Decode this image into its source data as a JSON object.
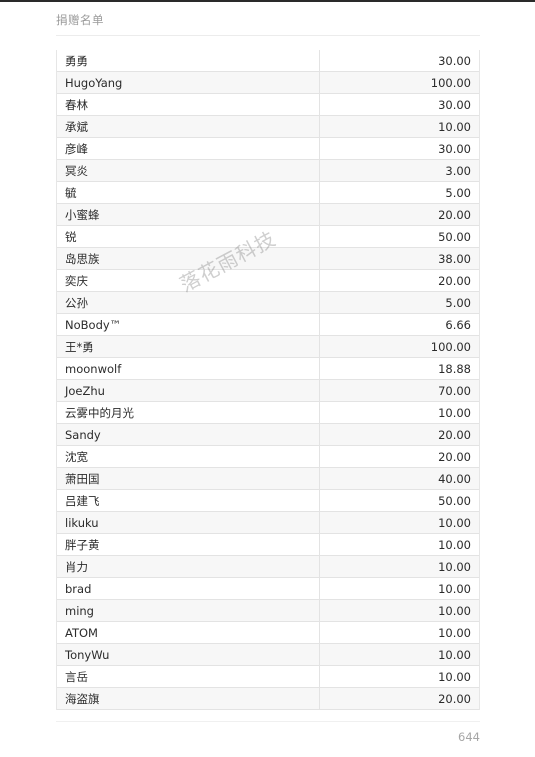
{
  "header": {
    "title": "捐赠名单"
  },
  "donations": [
    {
      "name": "勇勇",
      "amount": "30.00"
    },
    {
      "name": "HugoYang",
      "amount": "100.00"
    },
    {
      "name": "春林",
      "amount": "30.00"
    },
    {
      "name": "承斌",
      "amount": "10.00"
    },
    {
      "name": "彦峰",
      "amount": "30.00"
    },
    {
      "name": "冥炎",
      "amount": "3.00"
    },
    {
      "name": "毓",
      "amount": "5.00"
    },
    {
      "name": "小蜜蜂",
      "amount": "20.00"
    },
    {
      "name": "锐",
      "amount": "50.00"
    },
    {
      "name": "岛思族",
      "amount": "38.00"
    },
    {
      "name": "奕庆",
      "amount": "20.00"
    },
    {
      "name": "公孙",
      "amount": "5.00"
    },
    {
      "name": "NoBody™",
      "amount": "6.66"
    },
    {
      "name": "王*勇",
      "amount": "100.00"
    },
    {
      "name": "moonwolf",
      "amount": "18.88"
    },
    {
      "name": "JoeZhu",
      "amount": "70.00"
    },
    {
      "name": "云雾中的月光",
      "amount": "10.00"
    },
    {
      "name": "Sandy",
      "amount": "20.00"
    },
    {
      "name": "沈宽",
      "amount": "20.00"
    },
    {
      "name": "萧田国",
      "amount": "40.00"
    },
    {
      "name": "吕建飞",
      "amount": "50.00"
    },
    {
      "name": "likuku",
      "amount": "10.00"
    },
    {
      "name": "胖子黄",
      "amount": "10.00"
    },
    {
      "name": "肖力",
      "amount": "10.00"
    },
    {
      "name": "brad",
      "amount": "10.00"
    },
    {
      "name": "ming",
      "amount": "10.00"
    },
    {
      "name": "ATOM",
      "amount": "10.00"
    },
    {
      "name": "TonyWu",
      "amount": "10.00"
    },
    {
      "name": "言岳",
      "amount": "10.00"
    },
    {
      "name": "海盗旗",
      "amount": "20.00"
    }
  ],
  "watermark": "落花雨科技",
  "footer": {
    "page_number": "644"
  }
}
